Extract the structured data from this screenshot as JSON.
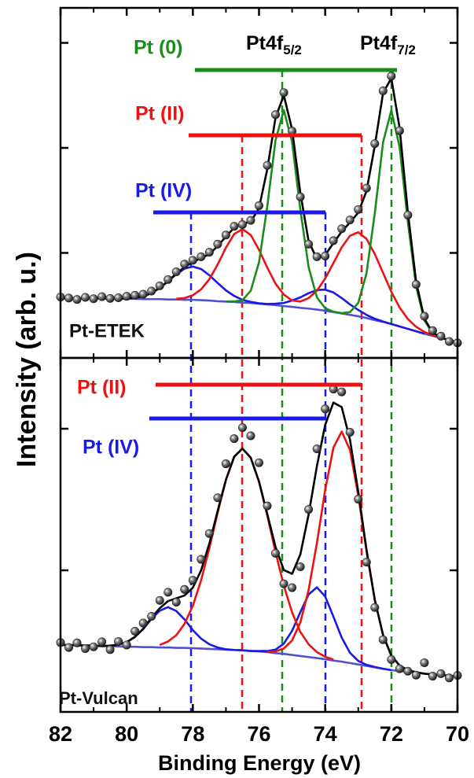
{
  "chart_data": {
    "type": "line",
    "x_label": "Binding Energy (eV)",
    "y_label": "Intensity (arb. u.)",
    "xlim": [
      82,
      70
    ],
    "xticks": [
      82,
      80,
      78,
      76,
      74,
      72,
      70
    ],
    "x_minor_ticks": [
      81,
      79,
      77,
      75,
      73,
      71
    ],
    "x": [
      82,
      81.75,
      81.5,
      81.25,
      81,
      80.75,
      80.5,
      80.25,
      80,
      79.75,
      79.5,
      79.25,
      79,
      78.75,
      78.5,
      78.25,
      78,
      77.75,
      77.5,
      77.25,
      77,
      76.75,
      76.5,
      76.25,
      76,
      75.75,
      75.5,
      75.25,
      75,
      74.75,
      74.5,
      74.25,
      74,
      73.75,
      73.5,
      73.25,
      73,
      72.75,
      72.5,
      72.25,
      72,
      71.75,
      71.5,
      71.25,
      71,
      70.75,
      70.5,
      70.25,
      70
    ],
    "panels": [
      {
        "label": "Pt-ETEK",
        "ylim": [
          0,
          100
        ],
        "yticks": [
          30,
          60,
          90
        ],
        "annotations": [
          {
            "text": "Pt (0)",
            "color": "#1a8c1a"
          },
          {
            "text": "Pt (II)",
            "color": "#ee1111"
          },
          {
            "text": "Pt (IV)",
            "color": "#1a1ae6"
          }
        ],
        "peak_labels": [
          {
            "text": "Pt4f",
            "sub": "5/2"
          },
          {
            "text": "Pt4f",
            "sub": "7/2"
          }
        ],
        "series": [
          {
            "style": "line",
            "color": "#5050d0",
            "values": [
              17.0,
              17.0,
              17.0,
              17.0,
              17.0,
              17.0,
              16.9,
              16.9,
              16.9,
              16.9,
              16.8,
              16.8,
              16.8,
              16.7,
              16.7,
              16.6,
              16.6,
              16.5,
              16.4,
              16.2,
              16.1,
              16.0,
              15.8,
              15.7,
              15.5,
              15.3,
              15.1,
              14.8,
              14.6,
              14.3,
              14.1,
              13.8,
              13.5,
              13.1,
              12.7,
              12.3,
              11.9,
              11.4,
              10.8,
              10.3,
              9.7,
              9.0,
              8.3,
              7.6,
              6.9,
              6.3,
              5.7,
              5.1,
              4.5
            ]
          },
          {
            "style": "line",
            "color": "#1a1ae6",
            "values": [
              null,
              null,
              null,
              null,
              null,
              null,
              null,
              null,
              17.0,
              17.2,
              17.6,
              18.5,
              20.0,
              21.9,
              23.9,
              25.5,
              26.1,
              25.4,
              23.6,
              21.4,
              19.3,
              17.7,
              16.6,
              16.0,
              15.6,
              15.4,
              15.5,
              15.7,
              16.4,
              17.3,
              18.5,
              19.4,
              19.5,
              18.7,
              17.1,
              15.3,
              13.7,
              12.3,
              11.2,
              10.4,
              9.7,
              9.0,
              8.3,
              7.6,
              6.9,
              null,
              null,
              null,
              null
            ]
          },
          {
            "style": "line",
            "color": "#ee1111",
            "values": [
              null,
              null,
              null,
              null,
              null,
              null,
              null,
              null,
              null,
              null,
              null,
              null,
              null,
              null,
              16.9,
              17.1,
              17.9,
              19.6,
              22.5,
              26.7,
              31.5,
              35.4,
              36.8,
              35.1,
              30.9,
              25.8,
              21.2,
              18.1,
              16.4,
              16.1,
              17.1,
              19.2,
              22.7,
              27.1,
              31.6,
              34.9,
              35.9,
              34.0,
              29.7,
              24.3,
              18.9,
              14.4,
              11.1,
              8.9,
              7.4,
              6.5,
              5.7,
              5.1,
              4.5
            ]
          },
          {
            "style": "line",
            "color": "#1a8c1a",
            "values": [
              null,
              null,
              null,
              null,
              null,
              null,
              null,
              null,
              null,
              null,
              null,
              null,
              null,
              null,
              null,
              null,
              null,
              null,
              null,
              null,
              16.1,
              16.1,
              16.5,
              19.2,
              27.3,
              43.3,
              62.2,
              70.8,
              61.7,
              42.3,
              25.9,
              17.3,
              14.2,
              13.2,
              12.8,
              13.1,
              15.7,
              24.2,
              41.3,
              61.6,
              70.7,
              60.3,
              38.8,
              20.4,
              10.7,
              7.1,
              5.8,
              5.1,
              4.5
            ]
          },
          {
            "style": "line",
            "color": "#000000",
            "values": [
              17.0,
              17.0,
              17.0,
              17.0,
              17.0,
              17.0,
              16.9,
              16.9,
              17.0,
              17.2,
              17.6,
              18.5,
              20.0,
              21.9,
              24.1,
              26.0,
              27.4,
              28.5,
              29.7,
              31.9,
              34.7,
              37.2,
              38.3,
              38.9,
              42.8,
              53.9,
              68.7,
              75.0,
              65.3,
              47.1,
              33.3,
              28.3,
              29.4,
              32.8,
              36.1,
              38.7,
              41.5,
              47.7,
              60.6,
              75.7,
              79.9,
              65.7,
              41.6,
              21.7,
              11.2,
              7.3,
              5.8,
              5.1,
              4.5
            ]
          },
          {
            "style": "dots",
            "color": "#222222",
            "values": [
              17.4,
              17.1,
              16.7,
              17.3,
              16.9,
              17.5,
              17.0,
              17.2,
              17.6,
              17.9,
              18.2,
              19.1,
              20.6,
              22.4,
              24.6,
              26.8,
              27.9,
              28.9,
              30.2,
              32.5,
              35.1,
              37.6,
              38.1,
              39.3,
              43.5,
              55.0,
              69.5,
              75.8,
              64.8,
              46.0,
              32.5,
              28.9,
              29.1,
              33.5,
              36.9,
              39.4,
              42.4,
              48.5,
              61.2,
              76.3,
              80.5,
              64.9,
              40.8,
              21.0,
              11.9,
              7.8,
              6.2,
              4.7,
              4.3
            ]
          }
        ]
      },
      {
        "label": "Pt-Vulcan",
        "ylim": [
          0,
          100
        ],
        "yticks": [
          40,
          80
        ],
        "annotations": [
          {
            "text": "Pt (II)",
            "color": "#ee1111"
          },
          {
            "text": "Pt (IV)",
            "color": "#1a1ae6"
          }
        ],
        "series": [
          {
            "style": "line",
            "color": "#5050d0",
            "values": [
              18.9,
              18.9,
              18.8,
              18.8,
              18.7,
              18.6,
              18.6,
              18.5,
              18.4,
              18.4,
              18.3,
              18.3,
              18.2,
              18.2,
              18.1,
              18.1,
              18.0,
              17.9,
              17.8,
              17.7,
              17.6,
              17.5,
              17.4,
              17.2,
              17.1,
              16.9,
              16.6,
              16.4,
              16.1,
              15.8,
              15.5,
              15.2,
              14.9,
              14.5,
              14.2,
              13.8,
              13.4,
              13.0,
              12.6,
              12.2,
              11.8,
              11.6,
              11.3,
              11.1,
              10.8,
              10.6,
              10.4,
              10.2,
              10.0
            ]
          },
          {
            "style": "line",
            "color": "#1a1ae6",
            "values": [
              null,
              null,
              null,
              null,
              null,
              18.6,
              18.7,
              19.0,
              19.7,
              21.2,
              23.4,
              26.3,
              28.6,
              29.6,
              28.5,
              26.1,
              23.1,
              20.7,
              19.1,
              18.2,
              17.7,
              17.5,
              17.4,
              17.2,
              17.2,
              17.2,
              17.6,
              19.3,
              22.9,
              28.2,
              33.2,
              35.2,
              32.6,
              26.9,
              21.0,
              16.7,
              14.4,
              13.3,
              12.7,
              12.2,
              11.8,
              null,
              null,
              null,
              null,
              null,
              null,
              null,
              null
            ]
          },
          {
            "style": "line",
            "color": "#ee1111",
            "values": [
              null,
              null,
              null,
              null,
              null,
              null,
              null,
              null,
              null,
              null,
              null,
              null,
              18.9,
              19.9,
              21.7,
              24.9,
              30.0,
              37.2,
              46.3,
              56.3,
              65.5,
              72.1,
              74.4,
              71.8,
              65.0,
              55.5,
              45.1,
              35.7,
              28.1,
              22.6,
              19.1,
              16.9,
              15.6,
              14.8,
              null,
              null,
              null,
              null,
              null,
              null,
              null,
              null,
              null,
              null,
              null,
              null,
              null,
              null,
              null
            ]
          },
          {
            "style": "line",
            "color": "#ee1111",
            "values": [
              null,
              null,
              null,
              null,
              null,
              null,
              null,
              null,
              null,
              null,
              null,
              null,
              null,
              null,
              null,
              null,
              null,
              null,
              null,
              null,
              null,
              null,
              null,
              null,
              null,
              17.0,
              17.1,
              17.9,
              20.2,
              25.3,
              34.5,
              47.7,
              62.7,
              74.7,
              79.2,
              74.0,
              61.2,
              45.5,
              31.6,
              21.7,
              15.9,
              13.1,
              11.8,
              11.2,
              10.8,
              null,
              null,
              null,
              null
            ]
          },
          {
            "style": "line",
            "color": "#000000",
            "values": [
              18.9,
              18.9,
              18.8,
              18.8,
              18.7,
              18.6,
              18.7,
              19.0,
              19.7,
              21.2,
              23.5,
              26.6,
              29.3,
              31.3,
              32.1,
              32.9,
              35.1,
              40.0,
              47.6,
              56.8,
              65.6,
              72.1,
              74.4,
              71.8,
              65.1,
              55.9,
              46.6,
              40.1,
              39.0,
              44.5,
              55.8,
              69.4,
              81.1,
              87.4,
              86.1,
              76.9,
              62.2,
              45.8,
              31.7,
              21.7,
              15.9,
              13.1,
              11.8,
              11.2,
              10.8,
              10.6,
              10.4,
              10.2,
              10.0
            ]
          },
          {
            "style": "dots",
            "color": "#222222",
            "values": [
              19.6,
              18.2,
              19.5,
              17.9,
              18.4,
              19.8,
              17.6,
              19.9,
              18.9,
              22.8,
              25.1,
              27.0,
              31.5,
              33.8,
              31.0,
              34.6,
              37.2,
              43.1,
              50.4,
              60.5,
              70.1,
              77.2,
              80.3,
              78.0,
              70.4,
              58.2,
              44.8,
              36.2,
              35.1,
              41.0,
              57.2,
              74.3,
              85.6,
              91.2,
              90.4,
              79.0,
              60.1,
              42.3,
              29.5,
              20.4,
              14.8,
              12.2,
              11.5,
              10.4,
              13.9,
              10.1,
              10.8,
              9.6,
              10.3
            ]
          }
        ]
      }
    ]
  }
}
